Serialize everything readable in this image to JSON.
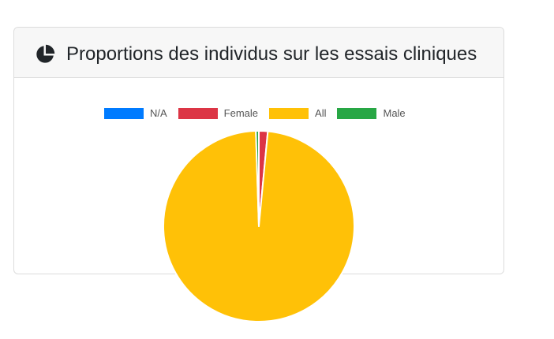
{
  "card": {
    "title": "Proportions des individus sur les essais cliniques",
    "icon": "pie-chart-icon"
  },
  "chart_data": {
    "type": "pie",
    "title": "Proportions des individus sur les essais cliniques",
    "legend_position": "top",
    "categories": [
      "N/A",
      "Female",
      "All",
      "Male"
    ],
    "values": [
      0,
      1.5,
      98,
      0.5
    ],
    "colors": [
      "#007bff",
      "#dc3545",
      "#ffc107",
      "#28a745"
    ]
  }
}
